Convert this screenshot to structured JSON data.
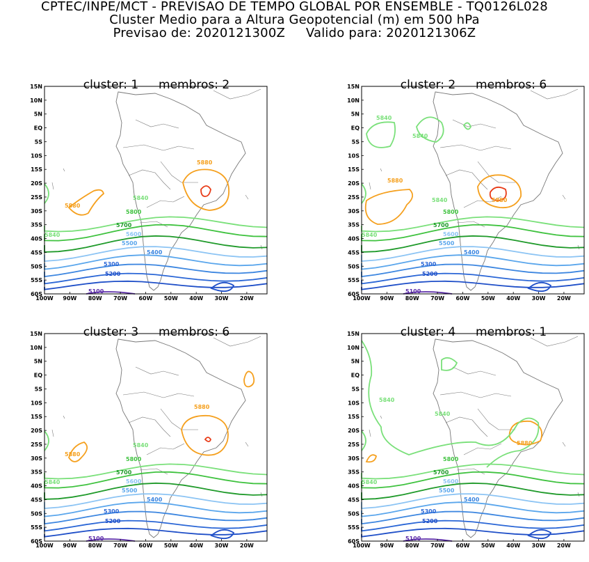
{
  "header": {
    "line1": "CPTEC/INPE/MCT - PREVISAO DE TEMPO GLOBAL POR ENSEMBLE - TQ0126L028",
    "line2": "Cluster Medio para a Altura Geopotencial (m) em 500 hPa",
    "forecast_label": "Previsao de:",
    "forecast_value": "2020121300Z",
    "valid_label": "Valido para:",
    "valid_value": "2020121306Z"
  },
  "axes": {
    "lat_ticks": [
      "15N",
      "10N",
      "5N",
      "EQ",
      "5S",
      "10S",
      "15S",
      "20S",
      "25S",
      "30S",
      "35S",
      "40S",
      "45S",
      "50S",
      "55S",
      "60S"
    ],
    "lon_ticks": [
      "100W",
      "90W",
      "80W",
      "70W",
      "60W",
      "50W",
      "40W",
      "30W",
      "20W"
    ]
  },
  "colors": {
    "c5100": "#5a2aa8",
    "c5200": "#1f4fc8",
    "c5300": "#2a66d6",
    "c5400": "#3c86e0",
    "c5500": "#5aa6ec",
    "c5600": "#8cc4f4",
    "c5700": "#1f9a2a",
    "c5800": "#3fc23f",
    "c5840": "#7ae07a",
    "c5880": "#f5a01e",
    "c5920": "#e83a16",
    "coast": "#777777"
  },
  "panels": [
    {
      "title": {
        "cluster_label": "cluster:",
        "cluster": "1",
        "members_label": "membros:",
        "members": "2"
      },
      "labels": {
        "l5880": "5880",
        "l5880b": "5880",
        "l5840": "5840",
        "l5800": "5800",
        "l5700": "5700",
        "l5600": "5600",
        "l5500": "5500",
        "l5400": "5400",
        "l5300": "5300",
        "l5200": "5200",
        "l5100": "5100",
        "l5840b": "5840"
      }
    },
    {
      "title": {
        "cluster_label": "cluster:",
        "cluster": "2",
        "members_label": "membros:",
        "members": "6"
      },
      "labels": {
        "l5880": "5880",
        "l5880b": "5880",
        "l5840": "5840",
        "l5840b": "5840",
        "l5840c": "5840",
        "l5800": "5800",
        "l5700": "5700",
        "l5600": "5600",
        "l5500": "5500",
        "l5400": "5400",
        "l5300": "5300",
        "l5200": "5200",
        "l5100": "5100",
        "l5840d": "5840"
      }
    },
    {
      "title": {
        "cluster_label": "cluster:",
        "cluster": "3",
        "members_label": "membros:",
        "members": "6"
      },
      "labels": {
        "l5880": "5880",
        "l5880b": "5880",
        "l5840": "5840",
        "l5800": "5800",
        "l5700": "5700",
        "l5600": "5600",
        "l5500": "5500",
        "l5400": "5400",
        "l5300": "5300",
        "l5200": "5200",
        "l5100": "5100",
        "l5840b": "5840"
      }
    },
    {
      "title": {
        "cluster_label": "cluster:",
        "cluster": "4",
        "members_label": "membros:",
        "members": "1"
      },
      "labels": {
        "l5880": "5880",
        "l5840": "5840",
        "l5840b": "5840",
        "l5800": "5800",
        "l5700": "5700",
        "l5600": "5600",
        "l5500": "5500",
        "l5400": "5400",
        "l5300": "5300",
        "l5200": "5200",
        "l5100": "5100",
        "l5840c": "5840"
      }
    }
  ]
}
